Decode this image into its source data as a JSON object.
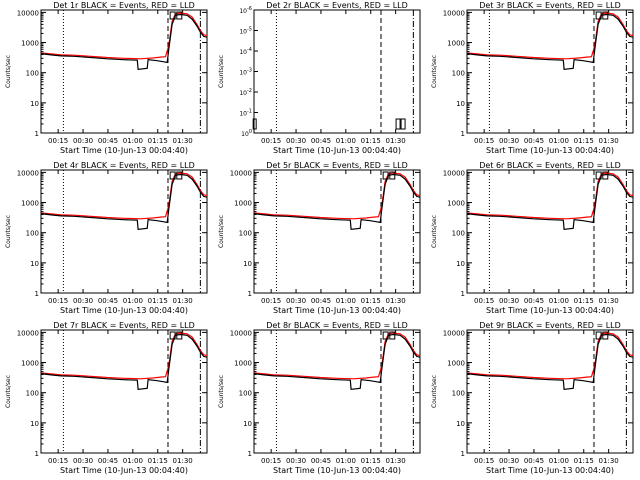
{
  "chart_data": {
    "type": "line",
    "layout_rows": 3,
    "layout_cols": 3,
    "background": "#ffffff",
    "colors": {
      "events": "#000000",
      "lld": "#ff0000",
      "axes": "#000000"
    },
    "xlabel": "Start Time (10-Jun-13 00:04:40)",
    "xticks": [
      "00:15",
      "00:30",
      "00:45",
      "01:00",
      "01:15",
      "01:30"
    ],
    "xtick_minutes": [
      10.33,
      25.33,
      40.33,
      55.33,
      70.33,
      85.33
    ],
    "xlim_minutes": [
      0,
      100
    ],
    "vlines": [
      {
        "style": "dotted",
        "minute": 13.5
      },
      {
        "style": "dashed",
        "minute": 76.5
      },
      {
        "style": "dashdot",
        "minute": 96.0
      }
    ],
    "ylabel": "Counts/sec",
    "yscale": "log",
    "ylim": [
      1,
      12000
    ],
    "yticks": [
      "1",
      "10",
      "100",
      "1000",
      "10000"
    ],
    "yticks_det2": [
      "10^0",
      "10^-1",
      "10^-2",
      "10^-3",
      "10^-4",
      "10^-5",
      "10^-6"
    ],
    "lld_series": {
      "x": [
        0,
        6,
        12,
        20,
        30,
        40,
        50,
        60,
        68,
        72,
        75,
        77,
        79,
        81,
        84,
        88,
        91,
        94,
        96,
        98,
        100
      ],
      "y": [
        450,
        420,
        390,
        380,
        350,
        320,
        300,
        290,
        310,
        330,
        340,
        800,
        5000,
        9000,
        9500,
        9000,
        7000,
        4000,
        2500,
        1800,
        1700
      ]
    },
    "events_series": {
      "x": [
        0,
        6,
        12,
        20,
        30,
        40,
        50,
        58,
        58.5,
        64,
        64.5,
        70,
        74,
        76,
        77,
        79,
        81,
        84,
        88,
        91,
        94,
        96,
        98,
        100
      ],
      "y": [
        430,
        390,
        360,
        350,
        320,
        290,
        270,
        260,
        130,
        140,
        270,
        250,
        230,
        220,
        600,
        4000,
        8000,
        8500,
        8000,
        6000,
        3500,
        2200,
        1600,
        1500
      ]
    },
    "panels": [
      {
        "title": "Det 1r BLACK = Events, RED = LLD"
      },
      {
        "title": "Det 2r BLACK = Events, RED = LLD"
      },
      {
        "title": "Det 3r BLACK = Events, RED = LLD"
      },
      {
        "title": "Det 4r BLACK = Events, RED = LLD"
      },
      {
        "title": "Det 5r BLACK = Events, RED = LLD"
      },
      {
        "title": "Det 6r BLACK = Events, RED = LLD"
      },
      {
        "title": "Det 7r BLACK = Events, RED = LLD"
      },
      {
        "title": "Det 8r BLACK = Events, RED = LLD"
      },
      {
        "title": "Det 9r BLACK = Events, RED = LLD"
      }
    ]
  }
}
